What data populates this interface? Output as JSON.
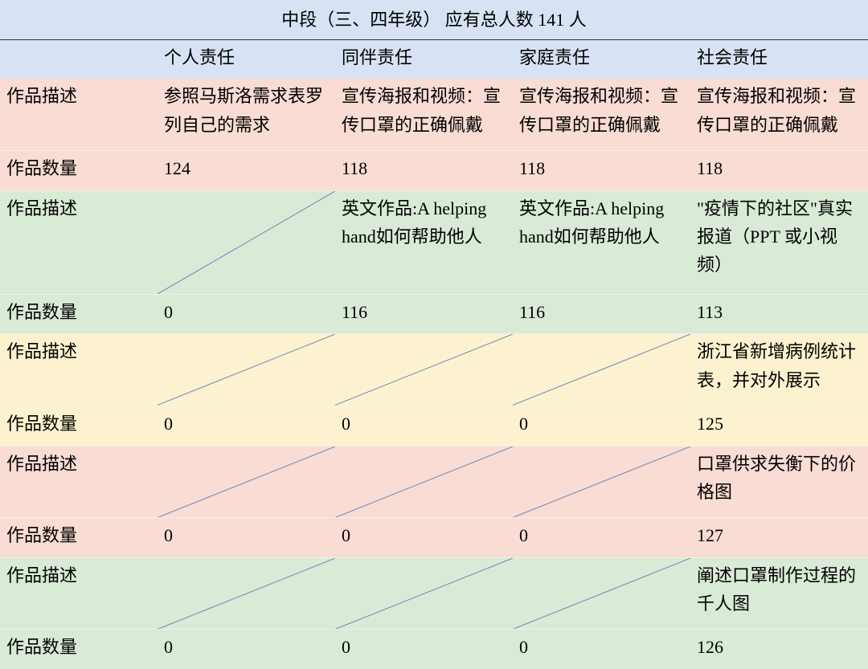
{
  "title": "中段（三、四年级） 应有总人数 141 人",
  "columns": [
    "个人责任",
    "同伴责任",
    "家庭责任",
    "社会责任"
  ],
  "row_labels": {
    "desc": "作品描述",
    "qty": "作品数量"
  },
  "colors": {
    "title_bg": "#d7e3f4",
    "header_bg": "#d7e3f4",
    "pink_bg": "#f9dcd4",
    "green_bg": "#d9ead6",
    "yellow_bg": "#fdf2d0",
    "diag_stroke": "#6b87b8",
    "border": "#5f6b7a"
  },
  "groups": [
    {
      "bg_key": "pink_bg",
      "desc": [
        {
          "text": "参照马斯洛需求表罗列自己的需求"
        },
        {
          "text": "宣传海报和视频：宣传口罩的正确佩戴"
        },
        {
          "text": "宣传海报和视频：宣传口罩的正确佩戴"
        },
        {
          "text": "宣传海报和视频：宣传口罩的正确佩戴"
        }
      ],
      "qty": [
        "124",
        "118",
        "118",
        "118"
      ]
    },
    {
      "bg_key": "green_bg",
      "desc": [
        {
          "diag": true
        },
        {
          "text": "英文作品:A helping hand如何帮助他人"
        },
        {
          "text": "英文作品:A helping hand如何帮助他人"
        },
        {
          "text": "\"疫情下的社区\"真实报道（PPT 或小视频）"
        }
      ],
      "qty": [
        "0",
        "116",
        "116",
        "113"
      ]
    },
    {
      "bg_key": "yellow_bg",
      "desc": [
        {
          "diag": true
        },
        {
          "diag": true
        },
        {
          "diag": true
        },
        {
          "text": "浙江省新增病例统计表，并对外展示"
        }
      ],
      "qty": [
        "0",
        "0",
        "0",
        "125"
      ]
    },
    {
      "bg_key": "pink_bg",
      "desc": [
        {
          "diag": true
        },
        {
          "diag": true
        },
        {
          "diag": true
        },
        {
          "text": "口罩供求失衡下的价格图"
        }
      ],
      "qty": [
        "0",
        "0",
        "0",
        "127"
      ]
    },
    {
      "bg_key": "green_bg",
      "desc": [
        {
          "diag": true
        },
        {
          "diag": true
        },
        {
          "diag": true
        },
        {
          "text": "阐述口罩制作过程的千人图"
        }
      ],
      "qty": [
        "0",
        "0",
        "0",
        "126"
      ]
    }
  ]
}
